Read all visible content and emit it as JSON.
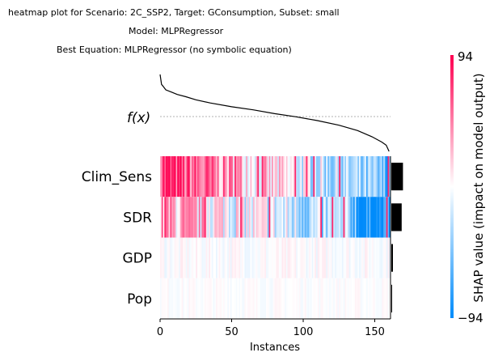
{
  "figure": {
    "title_lines": [
      "heatmap plot for Scenario: 2C_SSP2, Target: GConsumption, Subset: small",
      "Model: MLPRegressor",
      "Best Equation: MLPRegressor (no symbolic equation)"
    ],
    "fx_label": "f(x)",
    "xlabel": "Instances",
    "colorbar": {
      "label": "SHAP value (impact on model output)",
      "max_label": "94",
      "min_label": "−94",
      "vmax": 94,
      "vmin": -94
    }
  },
  "chart_data": {
    "type": "heatmap",
    "title": "heatmap plot for Scenario: 2C_SSP2, Target: GConsumption, Subset: small",
    "xlabel": "Instances",
    "features": [
      "Clim_Sens",
      "SDR",
      "GDP",
      "Pop"
    ],
    "n_instances": 161,
    "xlim": [
      0,
      161
    ],
    "xticks": [
      0,
      50,
      100,
      150
    ],
    "color_range": [
      -94,
      94
    ],
    "colors": {
      "positive": "#ff0051",
      "neutral": "#ffffff",
      "negative": "#008bfb",
      "fx_line": "#000000",
      "importance_bar": "#000000"
    },
    "fx_curve": [
      [
        0,
        1.0
      ],
      [
        1,
        0.87
      ],
      [
        2,
        0.85
      ],
      [
        4,
        0.8
      ],
      [
        8,
        0.77
      ],
      [
        12,
        0.74
      ],
      [
        18,
        0.71
      ],
      [
        25,
        0.67
      ],
      [
        35,
        0.63
      ],
      [
        50,
        0.58
      ],
      [
        65,
        0.54
      ],
      [
        80,
        0.49
      ],
      [
        95,
        0.45
      ],
      [
        110,
        0.4
      ],
      [
        125,
        0.34
      ],
      [
        138,
        0.27
      ],
      [
        148,
        0.19
      ],
      [
        155,
        0.12
      ],
      [
        158,
        0.08
      ],
      [
        160,
        0.0
      ]
    ],
    "mean_importance": [
      0.85,
      0.75,
      0.12,
      0.02
    ]
  }
}
